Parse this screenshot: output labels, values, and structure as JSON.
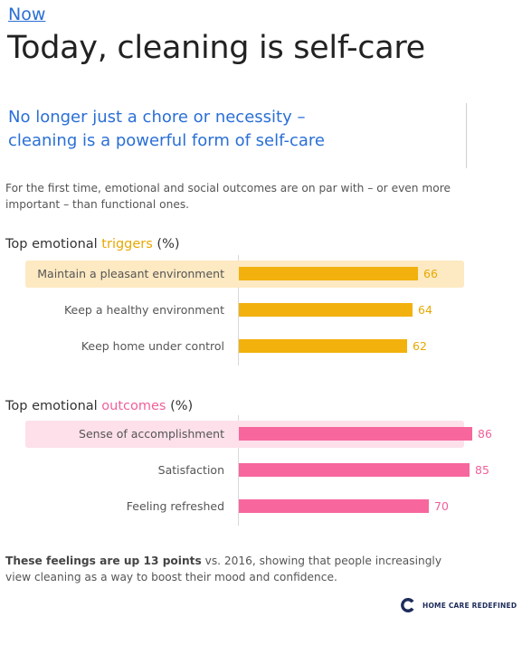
{
  "header": {
    "eyebrow": "Now",
    "title": "Today, cleaning is self-care",
    "subtitle_line1": "No longer just a chore or necessity –",
    "subtitle_line2": "cleaning is a powerful form of self-care",
    "intro_line1": "For the first time, emotional and social outcomes are on par with – or even more",
    "intro_line2": "important – than functional ones."
  },
  "colors": {
    "blue": "#2a6fd6",
    "yellow_bar": "#f2b10c",
    "yellow_highlight": "#fde9c2",
    "yellow_text": "#e7a800",
    "pink_bar": "#f7679e",
    "pink_highlight": "#fde0ea",
    "pink_text": "#f0609a"
  },
  "chart_data": [
    {
      "type": "bar",
      "orientation": "horizontal",
      "title_prefix": "Top emotional ",
      "title_accent": "triggers",
      "title_suffix": " (%)",
      "categories": [
        "Maintain a pleasant environment",
        "Keep a healthy environment",
        "Keep home under control"
      ],
      "values": [
        66,
        64,
        62
      ],
      "highlighted_index": 0
    },
    {
      "type": "bar",
      "orientation": "horizontal",
      "title_prefix": "Top emotional ",
      "title_accent": "outcomes",
      "title_suffix": " (%)",
      "categories": [
        "Sense of accomplishment",
        "Satisfaction",
        "Feeling refreshed"
      ],
      "values": [
        86,
        85,
        70
      ],
      "highlighted_index": 0
    }
  ],
  "footer": {
    "bold": "These feelings are up 13 points",
    "rest_line1": " vs. 2016, showing that people increasingly",
    "line2": "view cleaning as a way to boost their mood and confidence."
  },
  "brand": {
    "icon": "home-care-logo-icon",
    "text": "HOME CARE REDEFINED"
  }
}
